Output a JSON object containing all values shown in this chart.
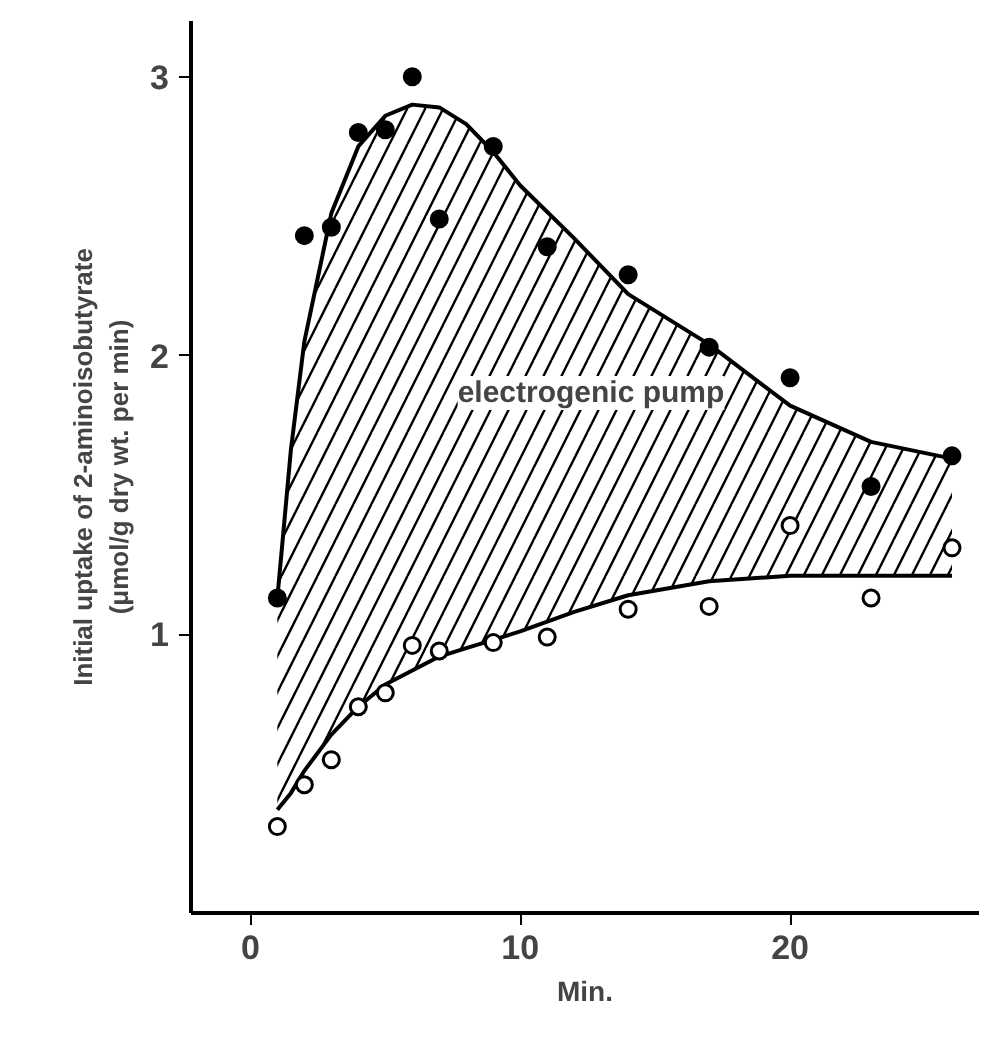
{
  "chart_data": {
    "type": "scatter",
    "xlabel": "Min.",
    "ylabel": "Initial uptake of 2-aminoisobutyrate\n(μmol/g dry wt. per min)",
    "xlim": [
      -2.2,
      27
    ],
    "ylim": [
      0,
      3.2
    ],
    "xticks": [
      0,
      10,
      20
    ],
    "yticks": [
      1,
      2,
      3
    ],
    "grid": false,
    "annotations": [
      "electrogenic pump"
    ],
    "series": [
      {
        "color": "#000000",
        "marker": "circle",
        "x": [
          1,
          2,
          3,
          4,
          5,
          6,
          7,
          9,
          11,
          14,
          17,
          20,
          23,
          26
        ],
        "values": [
          1.13,
          2.43,
          2.46,
          2.8,
          2.81,
          3.0,
          2.49,
          2.75,
          2.39,
          2.29,
          2.03,
          1.92,
          1.53,
          1.64
        ]
      },
      {
        "color": "#ffffff",
        "marker": "circle",
        "x": [
          1,
          2,
          3,
          4,
          5,
          6,
          7,
          9,
          11,
          14,
          17,
          20,
          23,
          26
        ],
        "values": [
          0.31,
          0.46,
          0.55,
          0.74,
          0.79,
          0.96,
          0.94,
          0.97,
          0.99,
          1.09,
          1.1,
          1.39,
          1.13,
          1.31
        ]
      },
      {
        "type": "line",
        "color": "#000000",
        "marker": "none",
        "x": [
          1,
          1.5,
          2,
          3,
          4,
          5,
          6,
          7,
          8,
          9,
          10,
          12,
          14,
          17,
          20,
          23,
          26
        ],
        "values": [
          1.13,
          1.66,
          2.05,
          2.51,
          2.75,
          2.86,
          2.9,
          2.89,
          2.83,
          2.73,
          2.61,
          2.42,
          2.22,
          2.04,
          1.82,
          1.69,
          1.63
        ],
        "lower": [
          0.37,
          0.43,
          0.51,
          0.64,
          0.74,
          0.82,
          0.87,
          0.92,
          0.95,
          0.98,
          1.01,
          1.08,
          1.14,
          1.19,
          1.21,
          1.21,
          1.21
        ],
        "upper": [
          1.13,
          1.66,
          2.05,
          2.51,
          2.75,
          2.86,
          2.9,
          2.89,
          2.83,
          2.73,
          2.61,
          2.42,
          2.22,
          2.04,
          1.82,
          1.69,
          1.63
        ]
      },
      {
        "type": "line",
        "color": "#000000",
        "marker": "none",
        "x": [
          1,
          1.5,
          2,
          3,
          4,
          5,
          6,
          7,
          8,
          9,
          10,
          12,
          14,
          17,
          20,
          23,
          26
        ],
        "values": [
          0.37,
          0.43,
          0.51,
          0.64,
          0.74,
          0.82,
          0.87,
          0.92,
          0.95,
          0.98,
          1.01,
          1.08,
          1.14,
          1.19,
          1.21,
          1.21,
          1.21
        ]
      }
    ]
  }
}
